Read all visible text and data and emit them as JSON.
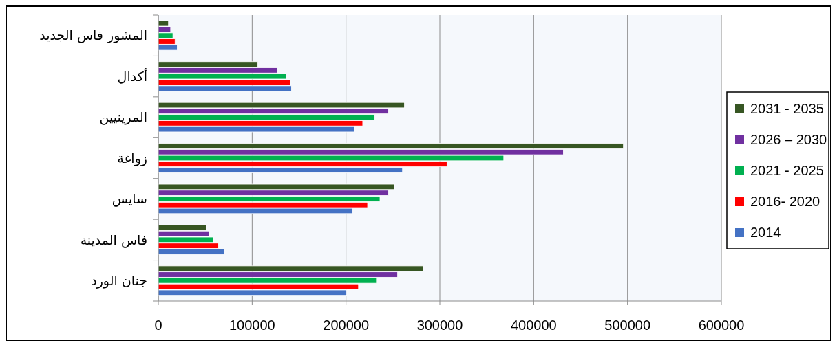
{
  "chart_data": {
    "type": "bar",
    "orientation": "horizontal",
    "categories": [
      "المشور فاس الجديد",
      "أكدال",
      "المرينيين",
      "زواغة",
      "سايس",
      "فاس المدينة",
      "جنان الورد"
    ],
    "series": [
      {
        "name": "2031 - 2035",
        "color": "#375623",
        "values": [
          10800,
          106000,
          262300,
          495600,
          251500,
          51300,
          282200
        ]
      },
      {
        "name": "2026 – 2030",
        "color": "#7030a0",
        "values": [
          13100,
          126600,
          245300,
          431600,
          245300,
          54200,
          255000
        ]
      },
      {
        "name": "2021 - 2025",
        "color": "#00b050",
        "values": [
          15500,
          136200,
          230400,
          368100,
          236200,
          58600,
          232400
        ]
      },
      {
        "name": "2016- 2020",
        "color": "#ff0000",
        "values": [
          17800,
          140700,
          217800,
          307600,
          223000,
          64100,
          213300
        ]
      },
      {
        "name": "2014",
        "color": "#4472c4",
        "values": [
          20100,
          141900,
          208900,
          260200,
          206900,
          70000,
          200700
        ]
      }
    ],
    "xlim": [
      0,
      600000
    ],
    "xticks": [
      0,
      100000,
      200000,
      300000,
      400000,
      500000,
      600000
    ],
    "grid": "x",
    "legend": "right"
  }
}
